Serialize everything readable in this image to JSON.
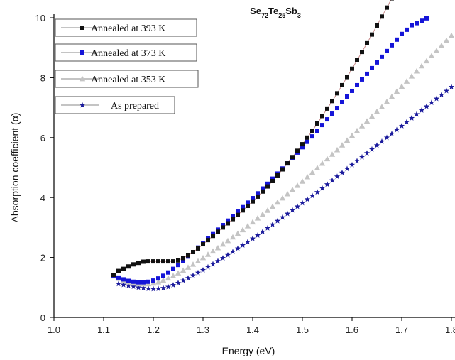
{
  "chart_data": {
    "type": "scatter",
    "title": "Se72Te25Sb3",
    "title_parts": {
      "base1": "Se",
      "sub1": "72",
      "base2": "Te",
      "sub2": "25",
      "base3": "Sb",
      "sub3": "3"
    },
    "xlabel": "Energy (eV)",
    "ylabel": "Absorption coefficient  (α)",
    "xlim": [
      1.0,
      1.8
    ],
    "ylim": [
      0,
      10
    ],
    "x_ticks": [
      "1.0",
      "1.1",
      "1.2",
      "1.3",
      "1.4",
      "1.5",
      "1.6",
      "1.7",
      "1.8"
    ],
    "y_ticks": [
      "0",
      "2",
      "4",
      "6",
      "8",
      "10"
    ],
    "grid": false,
    "legend_position": "top-left",
    "series": [
      {
        "name": "Annealed at 393 K",
        "marker": "square",
        "color": "#111111",
        "line": true,
        "line_color": "#c98a8a",
        "x": [
          1.12,
          1.13,
          1.14,
          1.15,
          1.16,
          1.17,
          1.18,
          1.19,
          1.2,
          1.21,
          1.22,
          1.23,
          1.24,
          1.25,
          1.26,
          1.27,
          1.28,
          1.29,
          1.3,
          1.31,
          1.32,
          1.33,
          1.34,
          1.35,
          1.36,
          1.37,
          1.38,
          1.39,
          1.4,
          1.41,
          1.42,
          1.43,
          1.44,
          1.45,
          1.46,
          1.47,
          1.48,
          1.49,
          1.5,
          1.51,
          1.52,
          1.53,
          1.54,
          1.55,
          1.56,
          1.57,
          1.58,
          1.59,
          1.6,
          1.61,
          1.62,
          1.63,
          1.64,
          1.65,
          1.66,
          1.67,
          1.68
        ],
        "y": [
          1.42,
          1.55,
          1.62,
          1.7,
          1.77,
          1.82,
          1.86,
          1.87,
          1.87,
          1.87,
          1.87,
          1.87,
          1.87,
          1.9,
          1.98,
          2.07,
          2.18,
          2.3,
          2.44,
          2.58,
          2.72,
          2.86,
          3.0,
          3.14,
          3.28,
          3.42,
          3.57,
          3.72,
          3.87,
          4.03,
          4.2,
          4.37,
          4.55,
          4.74,
          4.94,
          5.14,
          5.35,
          5.56,
          5.78,
          6.0,
          6.23,
          6.47,
          6.72,
          6.97,
          7.22,
          7.48,
          7.75,
          8.02,
          8.3,
          8.58,
          8.86,
          9.15,
          9.44,
          9.74,
          10.04,
          10.34,
          10.65
        ]
      },
      {
        "name": "Annealed at 373 K",
        "marker": "square",
        "color": "#1515d8",
        "line": false,
        "x": [
          1.12,
          1.13,
          1.14,
          1.15,
          1.16,
          1.17,
          1.18,
          1.19,
          1.2,
          1.21,
          1.22,
          1.23,
          1.24,
          1.25,
          1.26,
          1.27,
          1.28,
          1.29,
          1.3,
          1.31,
          1.32,
          1.33,
          1.34,
          1.35,
          1.36,
          1.37,
          1.38,
          1.39,
          1.4,
          1.41,
          1.42,
          1.43,
          1.44,
          1.45,
          1.46,
          1.47,
          1.48,
          1.49,
          1.5,
          1.51,
          1.52,
          1.53,
          1.54,
          1.55,
          1.56,
          1.57,
          1.58,
          1.59,
          1.6,
          1.61,
          1.62,
          1.63,
          1.64,
          1.65,
          1.66,
          1.67,
          1.68,
          1.69,
          1.7,
          1.71,
          1.72,
          1.73,
          1.74,
          1.75
        ],
        "y": [
          1.4,
          1.33,
          1.27,
          1.22,
          1.19,
          1.17,
          1.17,
          1.19,
          1.23,
          1.3,
          1.39,
          1.5,
          1.62,
          1.75,
          1.89,
          2.03,
          2.18,
          2.33,
          2.48,
          2.63,
          2.78,
          2.93,
          3.08,
          3.23,
          3.38,
          3.53,
          3.68,
          3.83,
          3.98,
          4.14,
          4.3,
          4.46,
          4.63,
          4.8,
          4.97,
          5.14,
          5.32,
          5.5,
          5.68,
          5.86,
          6.04,
          6.23,
          6.42,
          6.61,
          6.8,
          6.99,
          7.18,
          7.37,
          7.56,
          7.75,
          7.94,
          8.13,
          8.32,
          8.51,
          8.7,
          8.89,
          9.08,
          9.27,
          9.46,
          9.6,
          9.75,
          9.82,
          9.9,
          9.98
        ]
      },
      {
        "name": "Annealed at 353 K",
        "marker": "triangle",
        "color": "#c4c4c4",
        "line": false,
        "x": [
          1.12,
          1.13,
          1.14,
          1.15,
          1.16,
          1.17,
          1.18,
          1.19,
          1.2,
          1.21,
          1.22,
          1.23,
          1.24,
          1.25,
          1.26,
          1.27,
          1.28,
          1.29,
          1.3,
          1.31,
          1.32,
          1.33,
          1.34,
          1.35,
          1.36,
          1.37,
          1.38,
          1.39,
          1.4,
          1.41,
          1.42,
          1.43,
          1.44,
          1.45,
          1.46,
          1.47,
          1.48,
          1.49,
          1.5,
          1.51,
          1.52,
          1.53,
          1.54,
          1.55,
          1.56,
          1.57,
          1.58,
          1.59,
          1.6,
          1.61,
          1.62,
          1.63,
          1.64,
          1.65,
          1.66,
          1.67,
          1.68,
          1.69,
          1.7,
          1.71,
          1.72,
          1.73,
          1.74,
          1.75,
          1.76,
          1.77,
          1.78,
          1.79,
          1.8
        ],
        "y": [
          1.38,
          1.3,
          1.24,
          1.18,
          1.14,
          1.12,
          1.11,
          1.12,
          1.14,
          1.18,
          1.24,
          1.31,
          1.39,
          1.48,
          1.57,
          1.67,
          1.77,
          1.88,
          1.99,
          2.1,
          2.21,
          2.32,
          2.44,
          2.56,
          2.68,
          2.8,
          2.92,
          3.05,
          3.18,
          3.31,
          3.44,
          3.57,
          3.7,
          3.84,
          3.98,
          4.12,
          4.26,
          4.4,
          4.54,
          4.69,
          4.84,
          4.99,
          5.14,
          5.29,
          5.44,
          5.59,
          5.75,
          5.91,
          6.07,
          6.23,
          6.39,
          6.55,
          6.71,
          6.87,
          7.03,
          7.2,
          7.37,
          7.54,
          7.71,
          7.88,
          8.05,
          8.22,
          8.39,
          8.56,
          8.73,
          8.9,
          9.07,
          9.24,
          9.41
        ]
      },
      {
        "name": "As prepared",
        "marker": "star",
        "color": "#1a1a9c",
        "line": false,
        "x": [
          1.13,
          1.14,
          1.15,
          1.16,
          1.17,
          1.18,
          1.19,
          1.2,
          1.21,
          1.22,
          1.23,
          1.24,
          1.25,
          1.26,
          1.27,
          1.28,
          1.29,
          1.3,
          1.31,
          1.32,
          1.33,
          1.34,
          1.35,
          1.36,
          1.37,
          1.38,
          1.39,
          1.4,
          1.41,
          1.42,
          1.43,
          1.44,
          1.45,
          1.46,
          1.47,
          1.48,
          1.49,
          1.5,
          1.51,
          1.52,
          1.53,
          1.54,
          1.55,
          1.56,
          1.57,
          1.58,
          1.59,
          1.6,
          1.61,
          1.62,
          1.63,
          1.64,
          1.65,
          1.66,
          1.67,
          1.68,
          1.69,
          1.7,
          1.71,
          1.72,
          1.73,
          1.74,
          1.75,
          1.76,
          1.77,
          1.78,
          1.79,
          1.8
        ],
        "y": [
          1.12,
          1.09,
          1.06,
          1.03,
          1.0,
          0.98,
          0.96,
          0.95,
          0.96,
          0.98,
          1.02,
          1.08,
          1.15,
          1.23,
          1.31,
          1.4,
          1.49,
          1.58,
          1.68,
          1.78,
          1.88,
          1.98,
          2.08,
          2.19,
          2.3,
          2.41,
          2.52,
          2.63,
          2.74,
          2.86,
          2.98,
          3.1,
          3.22,
          3.34,
          3.46,
          3.58,
          3.7,
          3.82,
          3.94,
          4.06,
          4.18,
          4.31,
          4.44,
          4.57,
          4.7,
          4.83,
          4.96,
          5.09,
          5.22,
          5.35,
          5.48,
          5.61,
          5.74,
          5.87,
          6.0,
          6.13,
          6.26,
          6.39,
          6.52,
          6.65,
          6.78,
          6.91,
          7.04,
          7.17,
          7.3,
          7.43,
          7.56,
          7.69
        ]
      }
    ]
  }
}
